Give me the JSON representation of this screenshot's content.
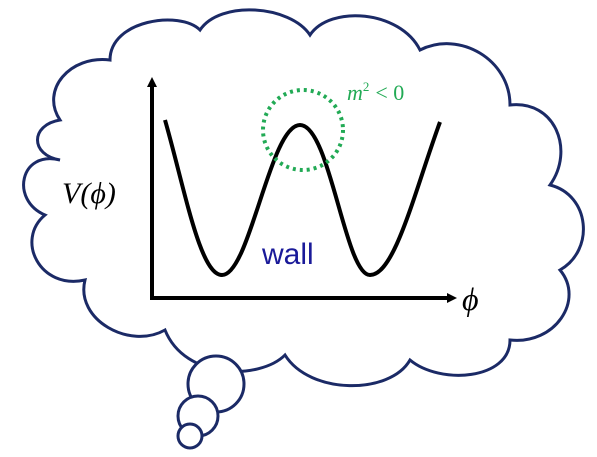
{
  "axes": {
    "y_label": "V(ϕ)",
    "x_label": "ϕ"
  },
  "labels": {
    "wall": "wall",
    "mass": {
      "base": "m",
      "exponent": "2",
      "relation": "< 0"
    }
  }
}
